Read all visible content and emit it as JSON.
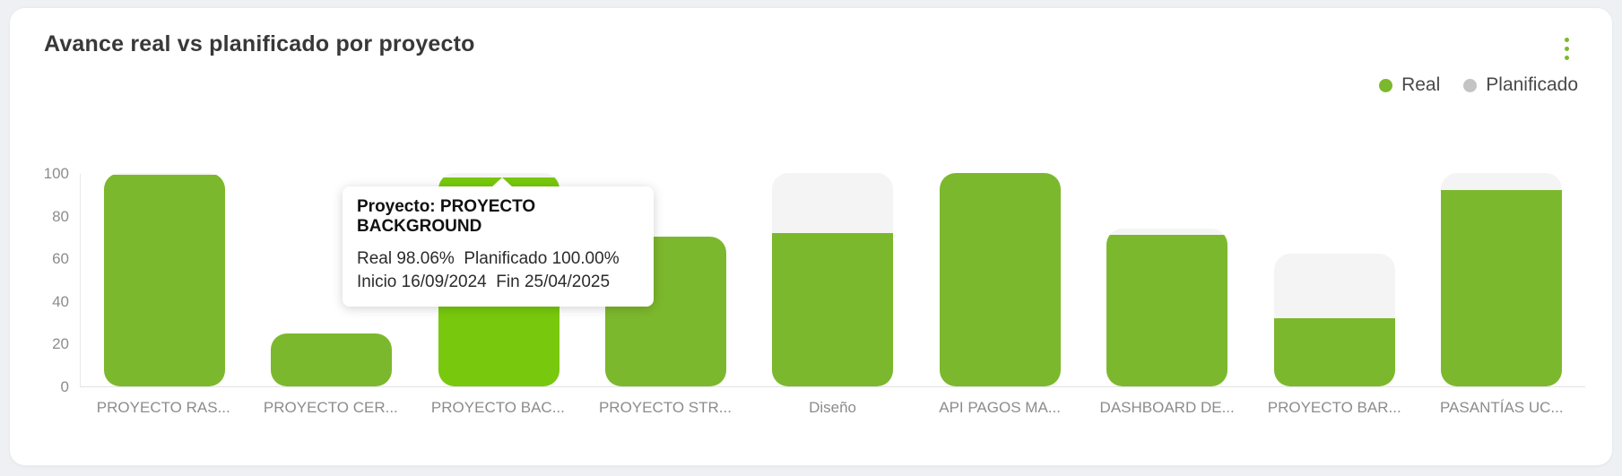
{
  "header": {
    "title": "Avance real vs planificado por proyecto"
  },
  "legend": {
    "items": [
      {
        "label": "Real",
        "color": "#7cb82d"
      },
      {
        "label": "Planificado",
        "color": "#c4c4c4"
      }
    ]
  },
  "tooltip": {
    "title": "Proyecto: PROYECTO BACKGROUND",
    "values_line": "Real 98.06%  Planificado 100.00%",
    "dates_line": "Inicio 16/09/2024  Fin 25/04/2025"
  },
  "colors": {
    "real": "#7cb82d",
    "real_hover": "#78c80d",
    "planificado_fill": "#f4f4f4",
    "kebab": "#7cb82d",
    "axis_text": "#8c8c8c"
  },
  "chart_data": {
    "type": "bar",
    "title": "Avance real vs planificado por proyecto",
    "categories": [
      "PROYECTO RAS...",
      "PROYECTO CER...",
      "PROYECTO BAC...",
      "PROYECTO STR...",
      "Diseño",
      "API PAGOS MA...",
      "DASHBOARD DE...",
      "PROYECTO BAR...",
      "PASANTÍAS UC..."
    ],
    "series": [
      {
        "name": "Real",
        "color": "#7cb82d",
        "values": [
          99,
          25,
          98.06,
          70,
          72,
          100,
          71,
          32,
          92
        ]
      },
      {
        "name": "Planificado",
        "color": "#f4f4f4",
        "values": [
          100,
          25,
          100,
          70,
          100,
          100,
          74,
          62,
          100
        ]
      }
    ],
    "ylim": [
      0,
      100
    ],
    "yticks": [
      0,
      20,
      40,
      60,
      80,
      100
    ],
    "grid": false,
    "legend_position": "top-right",
    "highlighted_index": 2,
    "highlighted_category": "PROYECTO BAC...",
    "tooltip_values": {
      "real": 98.06,
      "planificado": 100.0,
      "inicio": "16/09/2024",
      "fin": "25/04/2025"
    }
  }
}
